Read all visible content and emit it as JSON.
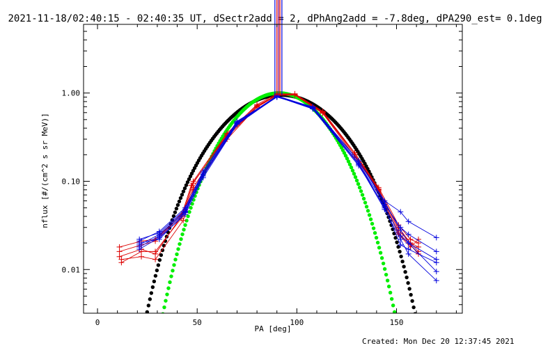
{
  "chart_data": {
    "type": "line",
    "title": "2021-11-18/02:40:15 - 02:40:35 UT, dSectr2add = 2, dPhAng2add = -7.8deg, dPA290_est=  0.1deg",
    "xlabel": "PA [deg]",
    "ylabel": "nflux [#/(cm^2 s sr MeV)]",
    "footer": "Created: Mon Dec 20 12:37:45 2021",
    "xlim": [
      -7,
      183
    ],
    "ylim": [
      0.0032,
      6.0
    ],
    "yscale": "log",
    "x_ticks": [
      0,
      50,
      100,
      150
    ],
    "x_tick_labels": [
      "0",
      "50",
      "100",
      "150"
    ],
    "y_ticks": [
      0.01,
      0.1,
      1.0
    ],
    "y_tick_labels": [
      "0.01",
      "0.10",
      "1.00"
    ],
    "colors": {
      "red": "#dd0000",
      "blue": "#0000dd",
      "black": "#000000",
      "green": "#00ee00",
      "purple": "#800080"
    },
    "vertical_markers": [
      {
        "x": 89.0,
        "color": "#0000dd"
      },
      {
        "x": 90.0,
        "color": "#dd0000"
      },
      {
        "x": 90.8,
        "color": "#800080"
      },
      {
        "x": 91.5,
        "color": "#dd0000"
      },
      {
        "x": 92.5,
        "color": "#0000dd"
      }
    ],
    "marker_y_range": [
      0.95,
      6.0
    ],
    "black_fit": {
      "x_start": 20,
      "x_end": 160,
      "peak": 0.95,
      "center": 92,
      "power": 6.0,
      "floor": 0.0032
    },
    "green_fit": {
      "x_start": 30,
      "x_end": 159,
      "peak": 1.0,
      "center": 91,
      "power": 9.0,
      "floor": 0.0032
    },
    "series": [
      {
        "color": "#dd0000",
        "x": [
          11,
          22,
          29,
          42,
          47,
          65,
          80,
          90,
          99,
          113,
          129,
          141,
          151,
          157,
          161
        ],
        "y": [
          0.014,
          0.017,
          0.015,
          0.04,
          0.09,
          0.33,
          0.7,
          0.96,
          0.97,
          0.6,
          0.2,
          0.08,
          0.03,
          0.02,
          0.018
        ]
      },
      {
        "color": "#dd0000",
        "x": [
          11,
          22,
          29,
          43,
          48,
          65,
          80,
          90,
          99,
          113,
          129,
          141,
          151,
          157,
          161
        ],
        "y": [
          0.016,
          0.019,
          0.021,
          0.043,
          0.1,
          0.35,
          0.74,
          0.98,
          0.98,
          0.62,
          0.21,
          0.085,
          0.032,
          0.022,
          0.02
        ]
      },
      {
        "color": "#dd0000",
        "x": [
          11,
          22,
          29,
          43,
          48,
          65,
          80,
          90,
          99,
          113,
          129,
          141,
          151,
          157,
          161
        ],
        "y": [
          0.018,
          0.021,
          0.022,
          0.045,
          0.095,
          0.34,
          0.72,
          0.95,
          0.96,
          0.61,
          0.2,
          0.082,
          0.028,
          0.02,
          0.016
        ]
      },
      {
        "color": "#dd0000",
        "x": [
          12,
          22,
          29,
          42,
          48,
          65,
          80,
          90,
          99,
          113,
          129,
          141,
          151,
          157,
          161
        ],
        "y": [
          0.012,
          0.016,
          0.016,
          0.038,
          0.085,
          0.32,
          0.69,
          0.94,
          0.95,
          0.59,
          0.19,
          0.078,
          0.026,
          0.019,
          0.015
        ]
      },
      {
        "color": "#dd0000",
        "x": [
          12,
          22,
          29,
          43,
          48,
          65,
          80,
          90,
          99,
          113,
          129,
          141,
          151,
          157,
          161
        ],
        "y": [
          0.013,
          0.014,
          0.013,
          0.036,
          0.08,
          0.3,
          0.7,
          0.96,
          0.97,
          0.6,
          0.21,
          0.08,
          0.025,
          0.018,
          0.022
        ]
      },
      {
        "color": "#0000dd",
        "x": [
          21,
          31,
          44,
          53,
          70,
          90,
          108,
          131,
          144,
          152,
          156,
          170
        ],
        "y": [
          0.021,
          0.027,
          0.05,
          0.13,
          0.48,
          0.9,
          0.7,
          0.17,
          0.06,
          0.045,
          0.035,
          0.023
        ]
      },
      {
        "color": "#0000dd",
        "x": [
          21,
          31,
          44,
          53,
          70,
          90,
          108,
          131,
          144,
          152,
          156,
          170
        ],
        "y": [
          0.019,
          0.025,
          0.046,
          0.12,
          0.45,
          0.92,
          0.68,
          0.16,
          0.055,
          0.03,
          0.025,
          0.016
        ]
      },
      {
        "color": "#0000dd",
        "x": [
          21,
          31,
          44,
          53,
          70,
          90,
          108,
          131,
          144,
          152,
          156,
          170
        ],
        "y": [
          0.017,
          0.023,
          0.042,
          0.11,
          0.44,
          0.91,
          0.66,
          0.15,
          0.052,
          0.024,
          0.02,
          0.013
        ]
      },
      {
        "color": "#0000dd",
        "x": [
          21,
          31,
          44,
          53,
          70,
          90,
          108,
          131,
          144,
          152,
          156,
          170
        ],
        "y": [
          0.02,
          0.022,
          0.044,
          0.12,
          0.46,
          0.93,
          0.69,
          0.16,
          0.05,
          0.019,
          0.017,
          0.012
        ]
      },
      {
        "color": "#0000dd",
        "x": [
          21,
          31,
          44,
          53,
          70,
          90,
          108,
          131,
          144,
          152,
          156,
          170
        ],
        "y": [
          0.022,
          0.026,
          0.048,
          0.125,
          0.47,
          0.92,
          0.67,
          0.155,
          0.048,
          0.022,
          0.015,
          0.0075
        ]
      },
      {
        "color": "#0000dd",
        "x": [
          21,
          31,
          44,
          53,
          70,
          90,
          108,
          131,
          144,
          152,
          156,
          170
        ],
        "y": [
          0.018,
          0.024,
          0.045,
          0.115,
          0.45,
          0.9,
          0.68,
          0.17,
          0.058,
          0.028,
          0.02,
          0.0095
        ]
      }
    ]
  }
}
